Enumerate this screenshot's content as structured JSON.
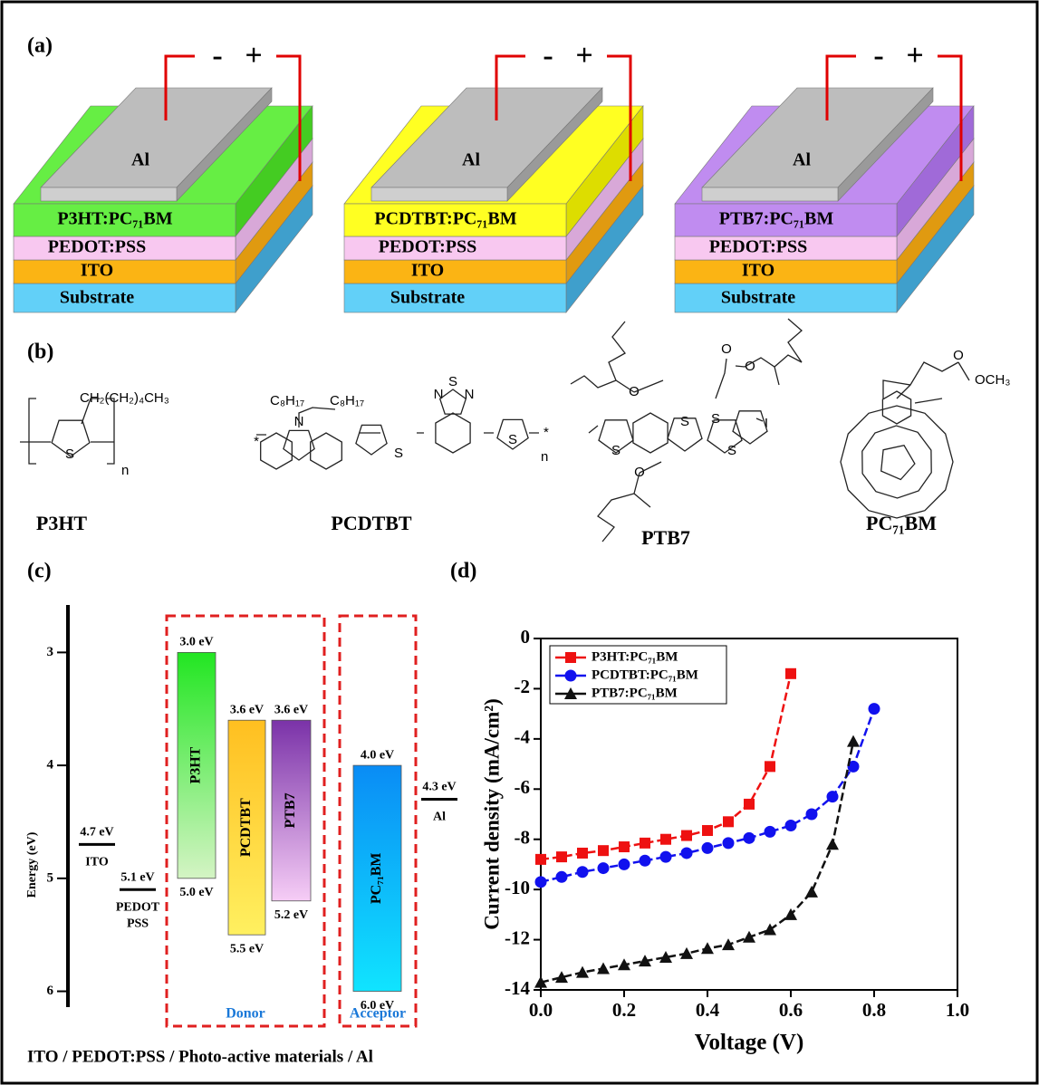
{
  "panel_a": {
    "label": "(a)",
    "devices": [
      {
        "electrode": "Al",
        "active": "P3HT:PC₇₁BM",
        "active_color": [
          "#66ee44",
          "#44cc22"
        ],
        "hole_layer": "PEDOT:PSS",
        "anode": "ITO",
        "substrate": "Substrate",
        "minus": "-",
        "plus": "+"
      },
      {
        "electrode": "Al",
        "active": "PCDTBT:PC₇₁BM",
        "active_color": [
          "#ffff22",
          "#dddd00"
        ],
        "hole_layer": "PEDOT:PSS",
        "anode": "ITO",
        "substrate": "Substrate",
        "minus": "-",
        "plus": "+"
      },
      {
        "electrode": "Al",
        "active": "PTB7:PC₇₁BM",
        "active_color": [
          "#c08cf0",
          "#a06ad8"
        ],
        "hole_layer": "PEDOT:PSS",
        "anode": "ITO",
        "substrate": "Substrate",
        "minus": "-",
        "plus": "+"
      }
    ]
  },
  "panel_b": {
    "label": "(b)",
    "molecules": [
      {
        "name": "P3HT",
        "atoms": [
          "CH₂(CH₂)₄CH₃",
          "S",
          "n"
        ]
      },
      {
        "name": "PCDTBT",
        "atoms": [
          "C₈H₁₇",
          "C₈H₁₇",
          "N",
          "*",
          "S",
          "N",
          "S",
          "N",
          "S",
          "n",
          "*"
        ]
      },
      {
        "name": "PTB7",
        "atoms": [
          "O",
          "O",
          "S",
          "S",
          "S",
          "O",
          "O",
          "I",
          "S"
        ]
      },
      {
        "name": "PC₇₁BM",
        "atoms": [
          "O",
          "OCH₃"
        ]
      }
    ]
  },
  "panel_c": {
    "label": "(c)",
    "axis_label": "Energy (eV)",
    "ylim": [
      2.58,
      6.14
    ],
    "inverted": true,
    "yticks": [
      3,
      4,
      5,
      6
    ],
    "levels": [
      {
        "name": "ITO",
        "value": 4.7,
        "label": "4.7 eV"
      },
      {
        "name": "PEDOT",
        "name2": "PSS",
        "value": 5.1,
        "label": "5.1 eV"
      },
      {
        "name": "Al",
        "value": 4.3,
        "label": "4.3 eV"
      }
    ],
    "materials": [
      {
        "name": "P3HT",
        "lumo": 3.0,
        "lumo_label": "3.0 eV",
        "homo": 5.0,
        "homo_label": "5.0 eV",
        "color": [
          "#22e622",
          "#d4f4c4"
        ]
      },
      {
        "name": "PCDTBT",
        "lumo": 3.6,
        "lumo_label": "3.6 eV",
        "homo": 5.5,
        "homo_label": "5.5 eV",
        "color": [
          "#ffbf20",
          "#fff060"
        ]
      },
      {
        "name": "PTB7",
        "lumo": 3.6,
        "lumo_label": "3.6 eV",
        "homo": 5.2,
        "homo_label": "5.2 eV",
        "color": [
          "#7a32a8",
          "#f6cdf6"
        ]
      },
      {
        "name": "PC₇₁BM",
        "lumo": 4.0,
        "lumo_label": "4.0 eV",
        "homo": 6.0,
        "homo_label": "6.0 eV",
        "color": [
          "#0a8cf5",
          "#10e4ff"
        ]
      }
    ],
    "groups": [
      "Donor",
      "Acceptor"
    ],
    "caption": "ITO / PEDOT:PSS / Photo-active materials / Al"
  },
  "chart_data": {
    "type": "line",
    "title": "(d)",
    "x_label": "Voltage (V)",
    "y_label": "Current density (mA/cm²)",
    "xlim": [
      0,
      1
    ],
    "ylim": [
      -14,
      0
    ],
    "xticks": [
      {
        "value": 0,
        "label": "0.0"
      },
      0.2,
      0.4,
      0.6,
      0.8,
      {
        "value": 1,
        "label": "1.0"
      }
    ],
    "yticks": [
      0,
      -2,
      -4,
      -6,
      -8,
      -10,
      -12,
      -14
    ],
    "legend": "upper-left",
    "series": [
      {
        "name": "P3HT:PC₇₁BM",
        "color": "#ee1111",
        "marker": "square",
        "x": [
          0,
          0.05,
          0.1,
          0.15,
          0.2,
          0.25,
          0.3,
          0.35,
          0.4,
          0.45,
          0.5,
          0.55,
          0.6
        ],
        "values": [
          -8.8,
          -8.7,
          -8.55,
          -8.45,
          -8.3,
          -8.15,
          -8.0,
          -7.85,
          -7.65,
          -7.3,
          -6.6,
          -5.1,
          -1.4
        ]
      },
      {
        "name": "PCDTBT:PC₇₁BM",
        "color": "#1111ee",
        "marker": "circle",
        "x": [
          0,
          0.05,
          0.1,
          0.15,
          0.2,
          0.25,
          0.3,
          0.35,
          0.4,
          0.45,
          0.5,
          0.55,
          0.6,
          0.65,
          0.7,
          0.75,
          0.8
        ],
        "values": [
          -9.7,
          -9.5,
          -9.3,
          -9.15,
          -9.0,
          -8.85,
          -8.7,
          -8.55,
          -8.35,
          -8.15,
          -7.95,
          -7.7,
          -7.45,
          -7.0,
          -6.3,
          -5.1,
          -2.8
        ]
      },
      {
        "name": "PTB7:PC₇₁BM",
        "color": "#111111",
        "marker": "triangle",
        "x": [
          0,
          0.05,
          0.1,
          0.15,
          0.2,
          0.25,
          0.3,
          0.35,
          0.4,
          0.45,
          0.5,
          0.55,
          0.6,
          0.65,
          0.7,
          0.75
        ],
        "values": [
          -13.7,
          -13.5,
          -13.3,
          -13.15,
          -13.0,
          -12.85,
          -12.7,
          -12.55,
          -12.35,
          -12.2,
          -11.9,
          -11.6,
          -11.0,
          -10.1,
          -8.2,
          -4.1
        ]
      }
    ]
  }
}
